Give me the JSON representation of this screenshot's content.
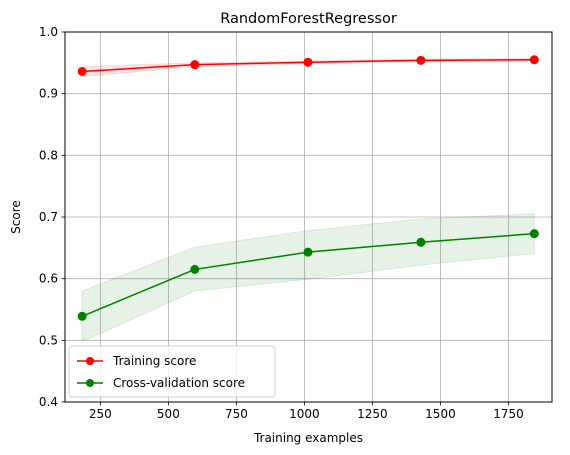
{
  "chart_data": {
    "type": "line",
    "title": "RandomForestRegressor",
    "xlabel": "Training examples",
    "ylabel": "Score",
    "xlim": [
      120,
      1910
    ],
    "ylim": [
      0.4,
      1.0
    ],
    "xticks": [
      250,
      500,
      750,
      1000,
      1250,
      1500,
      1750
    ],
    "yticks": [
      0.4,
      0.5,
      0.6,
      0.7,
      0.8,
      0.9,
      1.0
    ],
    "grid": true,
    "legend_position": "lower-left",
    "x": [
      183,
      597,
      1013,
      1428,
      1845
    ],
    "series": [
      {
        "name": "Training score",
        "color": "#ff0000",
        "values": [
          0.936,
          0.947,
          0.951,
          0.954,
          0.955
        ],
        "band_lower": [
          0.928,
          0.944,
          0.949,
          0.952,
          0.953
        ],
        "band_upper": [
          0.944,
          0.95,
          0.953,
          0.956,
          0.957
        ]
      },
      {
        "name": "Cross-validation score",
        "color": "#008000",
        "values": [
          0.539,
          0.615,
          0.643,
          0.659,
          0.673
        ],
        "band_lower": [
          0.498,
          0.58,
          0.599,
          0.622,
          0.641
        ],
        "band_upper": [
          0.58,
          0.651,
          0.678,
          0.697,
          0.705
        ]
      }
    ]
  }
}
